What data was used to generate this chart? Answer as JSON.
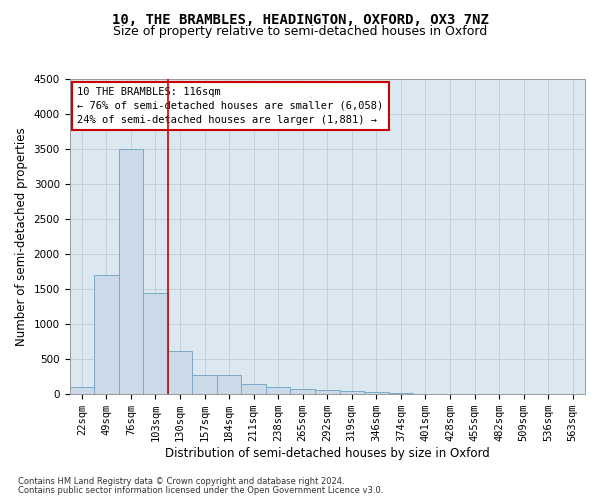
{
  "title": "10, THE BRAMBLES, HEADINGTON, OXFORD, OX3 7NZ",
  "subtitle": "Size of property relative to semi-detached houses in Oxford",
  "xlabel": "Distribution of semi-detached houses by size in Oxford",
  "ylabel": "Number of semi-detached properties",
  "footnote1": "Contains HM Land Registry data © Crown copyright and database right 2024.",
  "footnote2": "Contains public sector information licensed under the Open Government Licence v3.0.",
  "annotation_title": "10 THE BRAMBLES: 116sqm",
  "annotation_line1": "← 76% of semi-detached houses are smaller (6,058)",
  "annotation_line2": "24% of semi-detached houses are larger (1,881) →",
  "categories": [
    "22sqm",
    "49sqm",
    "76sqm",
    "103sqm",
    "130sqm",
    "157sqm",
    "184sqm",
    "211sqm",
    "238sqm",
    "265sqm",
    "292sqm",
    "319sqm",
    "346sqm",
    "374sqm",
    "401sqm",
    "428sqm",
    "455sqm",
    "482sqm",
    "509sqm",
    "536sqm",
    "563sqm"
  ],
  "values": [
    100,
    1700,
    3500,
    1450,
    620,
    270,
    270,
    140,
    100,
    70,
    55,
    50,
    35,
    20,
    10,
    8,
    5,
    4,
    3,
    2,
    2
  ],
  "bar_color": "#ccd9e8",
  "bar_edge_color": "#7aaac8",
  "vline_color": "#cc0000",
  "vline_position": 3.5,
  "ylim": [
    0,
    4500
  ],
  "yticks": [
    0,
    500,
    1000,
    1500,
    2000,
    2500,
    3000,
    3500,
    4000,
    4500
  ],
  "background_color": "#ffffff",
  "plot_bg_color": "#dce8f0",
  "grid_color": "#c0ccd8",
  "annotation_box_color": "#ffffff",
  "annotation_box_edge": "#cc0000",
  "title_fontsize": 10,
  "subtitle_fontsize": 9,
  "axis_label_fontsize": 8.5,
  "tick_fontsize": 7.5,
  "annotation_fontsize": 7.5,
  "footnote_fontsize": 6
}
